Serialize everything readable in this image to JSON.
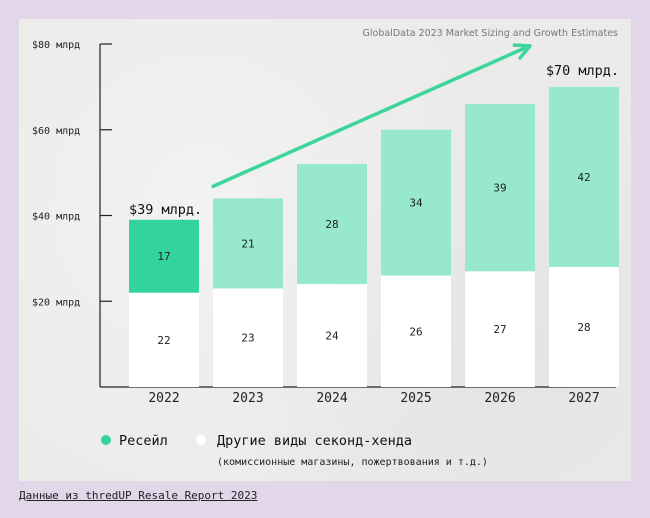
{
  "chart_data": {
    "type": "bar",
    "stacked": true,
    "source_title": "GlobalData 2023 Market Sizing and Growth Estimates",
    "categories": [
      "2022",
      "2023",
      "2024",
      "2025",
      "2026",
      "2027"
    ],
    "series": [
      {
        "name": "Другие виды секонд-хенда",
        "values": [
          22,
          23,
          24,
          26,
          27,
          28
        ],
        "color": "#ffffff"
      },
      {
        "name": "Ресейл",
        "values": [
          17,
          21,
          28,
          34,
          39,
          42
        ],
        "color": "#97e8cf",
        "first_color": "#33d39d"
      }
    ],
    "y_ticks": [
      {
        "value": 20,
        "label": "$20 млрд"
      },
      {
        "value": 40,
        "label": "$40 млрд"
      },
      {
        "value": 60,
        "label": "$60 млрд"
      },
      {
        "value": 80,
        "label": "$80 млрд"
      }
    ],
    "ylim": [
      0,
      80
    ],
    "annotations": {
      "start_total": "$39 млрд.",
      "end_total": "$70 млрд."
    },
    "legend": {
      "resale": "Ресейл",
      "other": "Другие виды секонд-хенда",
      "other_note": "(комиссионные магазины, пожертвования и т.д.)"
    },
    "colors": {
      "resale_first": "#33d39d",
      "resale": "#97e8cf",
      "other": "#ffffff",
      "arrow": "#3dd59e",
      "axis": "#222222"
    }
  },
  "footer": {
    "source": "Данные из thredUP Resale Report 2023"
  }
}
